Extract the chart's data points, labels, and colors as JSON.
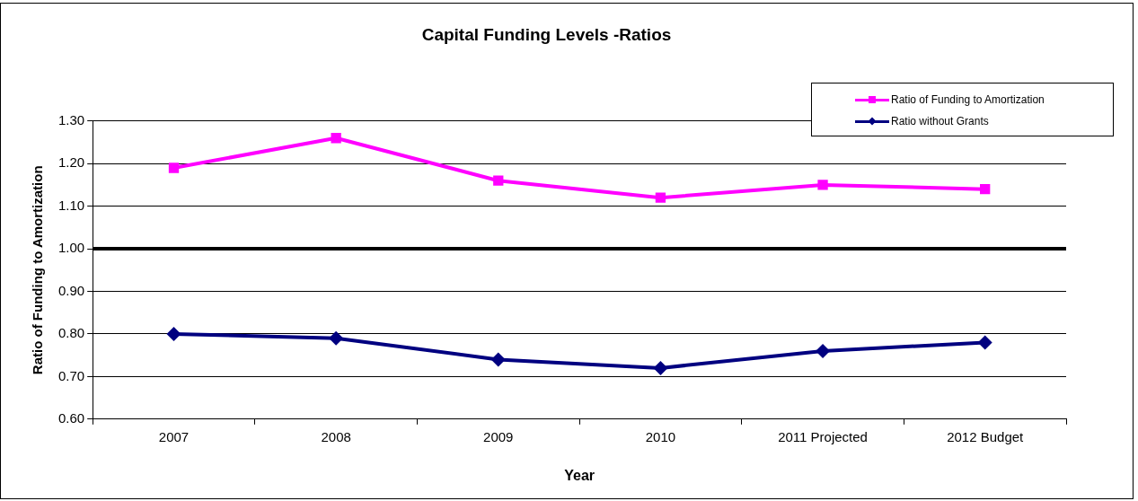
{
  "chart_data": {
    "type": "line",
    "title": "Capital Funding Levels -Ratios",
    "xlabel": "Year",
    "ylabel": "Ratio of Funding to Amortization",
    "categories": [
      "2007",
      "2008",
      "2009",
      "2010",
      "2011 Projected",
      "2012 Budget"
    ],
    "series": [
      {
        "name": "Ratio of Funding to Amortization",
        "color": "#ff00ff",
        "marker": "square",
        "values": [
          1.19,
          1.26,
          1.16,
          1.12,
          1.15,
          1.14
        ]
      },
      {
        "name": "Ratio without Grants",
        "color": "#000080",
        "marker": "diamond",
        "values": [
          0.8,
          0.79,
          0.74,
          0.72,
          0.76,
          0.78
        ]
      }
    ],
    "ref_lines": [
      {
        "axis": "y",
        "value": 1.0,
        "color": "#000000"
      }
    ],
    "ylim": [
      0.6,
      1.3
    ],
    "yticks": [
      {
        "value": 0.6,
        "label": "0.60"
      },
      {
        "value": 0.7,
        "label": "0.70"
      },
      {
        "value": 0.8,
        "label": "0.80"
      },
      {
        "value": 0.9,
        "label": "0.90"
      },
      {
        "value": 1.0,
        "label": "1.00"
      },
      {
        "value": 1.1,
        "label": "1.10"
      },
      {
        "value": 1.2,
        "label": "1.20"
      },
      {
        "value": 1.3,
        "label": "1.30"
      }
    ],
    "grid": "y",
    "legend": "top right",
    "line_style": "solid"
  }
}
